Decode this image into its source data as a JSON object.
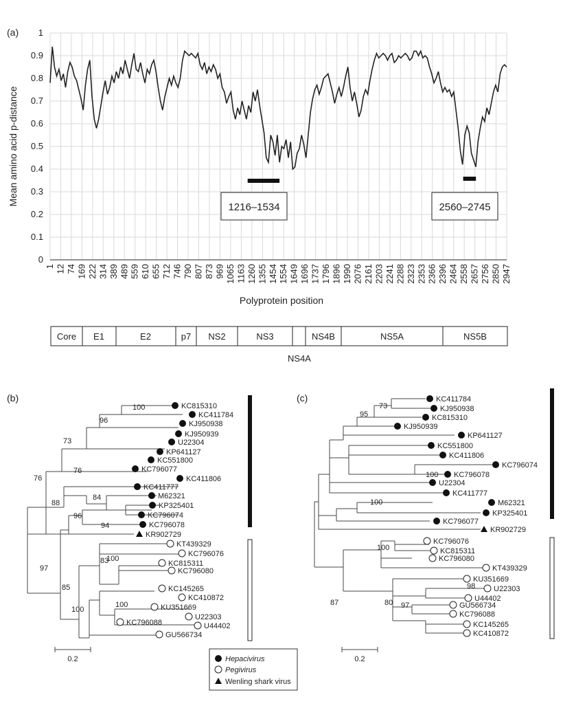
{
  "panel_labels": {
    "a": "(a)",
    "b": "(b)",
    "c": "(c)"
  },
  "chart_data": [
    {
      "type": "line",
      "ylabel": "Mean amino acid p-distance",
      "xlabel": "Polyprotein position",
      "ylim": [
        0,
        1
      ],
      "yticks": [
        "0",
        "0.1",
        "0.2",
        "0.3",
        "0.4",
        "0.5",
        "0.6",
        "0.7",
        "0.8",
        "0.9",
        "1"
      ],
      "xticks": [
        "1",
        "12",
        "74",
        "169",
        "222",
        "314",
        "389",
        "489",
        "559",
        "610",
        "655",
        "712",
        "746",
        "790",
        "807",
        "873",
        "969",
        "1065",
        "1163",
        "1260",
        "1355",
        "1454",
        "1554",
        "1649",
        "1696",
        "1737",
        "1796",
        "1896",
        "1990",
        "2076",
        "2161",
        "2203",
        "2241",
        "2288",
        "2323",
        "2353",
        "2366",
        "2396",
        "2464",
        "2558",
        "2657",
        "2756",
        "2850",
        "2947"
      ],
      "series": [
        {
          "values": [
            0.78,
            0.94,
            0.85,
            0.81,
            0.84,
            0.79,
            0.82,
            0.76,
            0.83,
            0.87,
            0.85,
            0.81,
            0.79,
            0.75,
            0.71,
            0.66,
            0.77,
            0.84,
            0.88,
            0.72,
            0.62,
            0.58,
            0.62,
            0.68,
            0.74,
            0.79,
            0.73,
            0.76,
            0.81,
            0.78,
            0.83,
            0.8,
            0.85,
            0.82,
            0.88,
            0.84,
            0.8,
            0.86,
            0.91,
            0.84,
            0.83,
            0.87,
            0.82,
            0.78,
            0.84,
            0.82,
            0.86,
            0.88,
            0.83,
            0.76,
            0.7,
            0.66,
            0.72,
            0.76,
            0.8,
            0.77,
            0.81,
            0.78,
            0.76,
            0.8,
            0.88,
            0.92,
            0.91,
            0.9,
            0.91,
            0.9,
            0.89,
            0.91,
            0.86,
            0.84,
            0.87,
            0.82,
            0.85,
            0.83,
            0.86,
            0.84,
            0.8,
            0.82,
            0.76,
            0.74,
            0.69,
            0.72,
            0.74,
            0.66,
            0.62,
            0.67,
            0.64,
            0.7,
            0.66,
            0.62,
            0.68,
            0.65,
            0.74,
            0.7,
            0.75,
            0.68,
            0.62,
            0.56,
            0.45,
            0.43,
            0.55,
            0.52,
            0.46,
            0.55,
            0.43,
            0.5,
            0.49,
            0.53,
            0.45,
            0.52,
            0.4,
            0.41,
            0.47,
            0.49,
            0.55,
            0.51,
            0.45,
            0.55,
            0.65,
            0.71,
            0.75,
            0.77,
            0.73,
            0.76,
            0.8,
            0.81,
            0.82,
            0.78,
            0.74,
            0.69,
            0.73,
            0.76,
            0.72,
            0.76,
            0.81,
            0.85,
            0.76,
            0.7,
            0.74,
            0.69,
            0.63,
            0.66,
            0.72,
            0.75,
            0.73,
            0.79,
            0.84,
            0.88,
            0.91,
            0.89,
            0.9,
            0.91,
            0.9,
            0.88,
            0.9,
            0.91,
            0.87,
            0.88,
            0.9,
            0.89,
            0.9,
            0.91,
            0.9,
            0.88,
            0.89,
            0.92,
            0.92,
            0.9,
            0.92,
            0.89,
            0.9,
            0.89,
            0.85,
            0.82,
            0.78,
            0.8,
            0.83,
            0.78,
            0.74,
            0.76,
            0.74,
            0.75,
            0.72,
            0.74,
            0.66,
            0.58,
            0.48,
            0.42,
            0.55,
            0.59,
            0.56,
            0.47,
            0.44,
            0.41,
            0.52,
            0.58,
            0.63,
            0.61,
            0.67,
            0.64,
            0.69,
            0.74,
            0.77,
            0.74,
            0.82,
            0.85,
            0.86,
            0.85
          ]
        }
      ],
      "annotations": [
        {
          "label": "1216–1534",
          "start_tick": 18.6,
          "end_tick": 21.6
        },
        {
          "label": "2560–2745",
          "start_tick": 38.9,
          "end_tick": 40.1
        }
      ],
      "genome_map": {
        "segments": [
          "Core",
          "E1",
          "E2",
          "p7",
          "NS2",
          "NS3",
          "",
          "NS4B",
          "NS5A",
          "NS5B"
        ],
        "below_label": "NS4A"
      }
    },
    {
      "type": "phylogenetic_tree",
      "bootstrap": [
        "100",
        "96",
        "73",
        "76",
        "76",
        "88",
        "84",
        "96",
        "94",
        "97",
        "100",
        "85",
        "83",
        "100",
        "100"
      ],
      "taxa": [
        {
          "name": "KC815310",
          "group": "hepacivirus"
        },
        {
          "name": "KC411784",
          "group": "hepacivirus"
        },
        {
          "name": "KJ950938",
          "group": "hepacivirus"
        },
        {
          "name": "KJ950939",
          "group": "hepacivirus"
        },
        {
          "name": "U22304",
          "group": "hepacivirus"
        },
        {
          "name": "KP641127",
          "group": "hepacivirus"
        },
        {
          "name": "KC551800",
          "group": "hepacivirus"
        },
        {
          "name": "KC796077",
          "group": "hepacivirus"
        },
        {
          "name": "KC411806",
          "group": "hepacivirus"
        },
        {
          "name": "KC411777",
          "group": "hepacivirus"
        },
        {
          "name": "M62321",
          "group": "hepacivirus"
        },
        {
          "name": "KP325401",
          "group": "hepacivirus"
        },
        {
          "name": "KC796074",
          "group": "hepacivirus"
        },
        {
          "name": "KC796078",
          "group": "hepacivirus"
        },
        {
          "name": "KR902729",
          "group": "wenling"
        },
        {
          "name": "KT439329",
          "group": "pegivirus"
        },
        {
          "name": "KC796076",
          "group": "pegivirus"
        },
        {
          "name": "KC815311",
          "group": "pegivirus"
        },
        {
          "name": "KC796080",
          "group": "pegivirus"
        },
        {
          "name": "KC145265",
          "group": "pegivirus"
        },
        {
          "name": "KC410872",
          "group": "pegivirus"
        },
        {
          "name": "KU351669",
          "group": "pegivirus"
        },
        {
          "name": "U22303",
          "group": "pegivirus"
        },
        {
          "name": "U44402",
          "group": "pegivirus"
        },
        {
          "name": "GU566734",
          "group": "pegivirus"
        },
        {
          "name": "KC796088",
          "group": "pegivirus"
        }
      ],
      "scale_label": "0.2"
    },
    {
      "type": "phylogenetic_tree",
      "bootstrap": [
        "73",
        "95",
        "100",
        "100",
        "87",
        "100",
        "98",
        "80",
        "97"
      ],
      "taxa": [
        {
          "name": "KC411784",
          "group": "hepacivirus"
        },
        {
          "name": "KJ950938",
          "group": "hepacivirus"
        },
        {
          "name": "KC815310",
          "group": "hepacivirus"
        },
        {
          "name": "KJ950939",
          "group": "hepacivirus"
        },
        {
          "name": "KP641127",
          "group": "hepacivirus"
        },
        {
          "name": "KC551800",
          "group": "hepacivirus"
        },
        {
          "name": "KC411806",
          "group": "hepacivirus"
        },
        {
          "name": "KC796074",
          "group": "hepacivirus"
        },
        {
          "name": "KC796078",
          "group": "hepacivirus"
        },
        {
          "name": "U22304",
          "group": "hepacivirus"
        },
        {
          "name": "KC411777",
          "group": "hepacivirus"
        },
        {
          "name": "M62321",
          "group": "hepacivirus"
        },
        {
          "name": "KP325401",
          "group": "hepacivirus"
        },
        {
          "name": "KC796077",
          "group": "hepacivirus"
        },
        {
          "name": "KR902729",
          "group": "wenling"
        },
        {
          "name": "KC796076",
          "group": "pegivirus"
        },
        {
          "name": "KC815311",
          "group": "pegivirus"
        },
        {
          "name": "KC796080",
          "group": "pegivirus"
        },
        {
          "name": "KT439329",
          "group": "pegivirus"
        },
        {
          "name": "KU351669",
          "group": "pegivirus"
        },
        {
          "name": "U22303",
          "group": "pegivirus"
        },
        {
          "name": "U44402",
          "group": "pegivirus"
        },
        {
          "name": "GU566734",
          "group": "pegivirus"
        },
        {
          "name": "KC796088",
          "group": "pegivirus"
        },
        {
          "name": "KC145265",
          "group": "pegivirus"
        },
        {
          "name": "KC410872",
          "group": "pegivirus"
        }
      ],
      "scale_label": "0.2"
    }
  ],
  "legend": [
    {
      "marker": "filled-circle",
      "label": "Hepacivirus",
      "italic": true
    },
    {
      "marker": "open-circle",
      "label": "Pegivirus",
      "italic": true
    },
    {
      "marker": "filled-triangle",
      "label": "Wenling shark virus",
      "italic": false
    }
  ]
}
